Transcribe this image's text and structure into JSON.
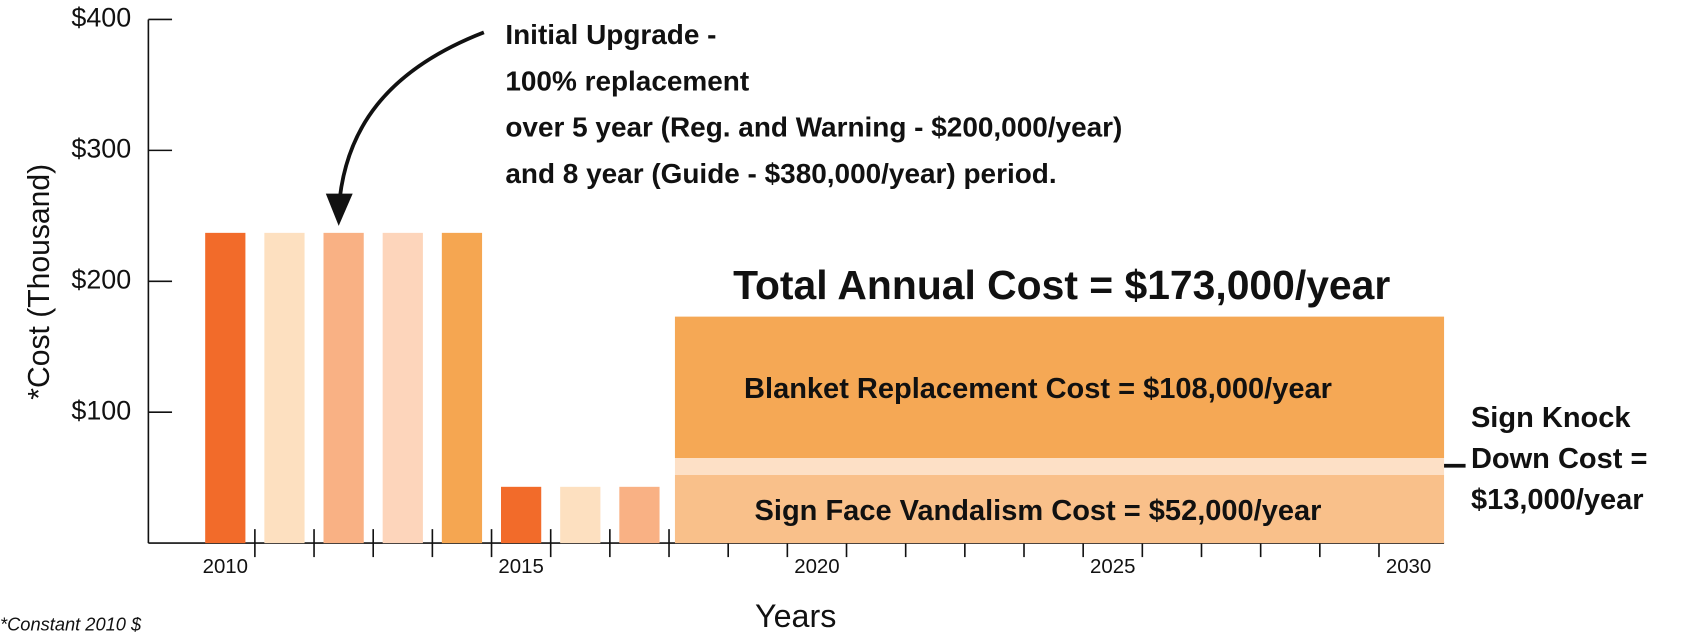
{
  "chart_data": {
    "type": "bar",
    "y_label": "*Cost (Thousand)",
    "x_label": "Years",
    "footnote": "*Constant 2010 $",
    "x": [
      2010,
      2011,
      2012,
      2013,
      2014,
      2015,
      2016,
      2017
    ],
    "values": [
      237,
      237,
      237,
      237,
      237,
      43,
      43,
      43
    ],
    "colors": [
      "#f26b2a",
      "#fde0c0",
      "#f9b184",
      "#fdd5bb",
      "#f5a651",
      "#f26b2a",
      "#fde0c0",
      "#f9b184"
    ],
    "xlim": [
      2008.7,
      2030.6
    ],
    "xticks": [
      2010,
      2015,
      2020,
      2025,
      2030
    ],
    "xminorticks": [
      2010.5,
      2011.5,
      2012.5,
      2013.5,
      2014.5,
      2015.5,
      2016.5,
      2017.5,
      2018.5,
      2019.5,
      2020.5,
      2021.5,
      2022.5,
      2023.5,
      2024.5,
      2025.5,
      2026.5,
      2027.5,
      2028.5,
      2029.5
    ],
    "ylim": [
      0,
      400
    ],
    "yticks": [
      {
        "value": 100,
        "label": "$100"
      },
      {
        "value": 200,
        "label": "$200"
      },
      {
        "value": 300,
        "label": "$300"
      },
      {
        "value": 400,
        "label": "$400"
      }
    ],
    "stack": {
      "type": "area",
      "x": [
        2017.6,
        2030.6
      ],
      "series": [
        {
          "name": "Sign Face Vandalism Cost = $52,000/year",
          "color": "#f9c08a",
          "values": [
            52,
            52
          ]
        },
        {
          "name": [
            "Sign Knock",
            "Down Cost =",
            "$13,000/year"
          ],
          "color": "#fde0c6",
          "values": [
            13,
            13
          ]
        },
        {
          "name": "Blanket Replacement Cost = $108,000/year",
          "color": "#f5a855",
          "values": [
            108,
            108
          ]
        }
      ],
      "total_label": "Total Annual Cost = $173,000/year"
    },
    "annotation": [
      "Initial Upgrade -",
      "100% replacement",
      "over 5 year (Reg. and Warning - $200,000/year)",
      "and 8 year (Guide - $380,000/year) period."
    ]
  }
}
